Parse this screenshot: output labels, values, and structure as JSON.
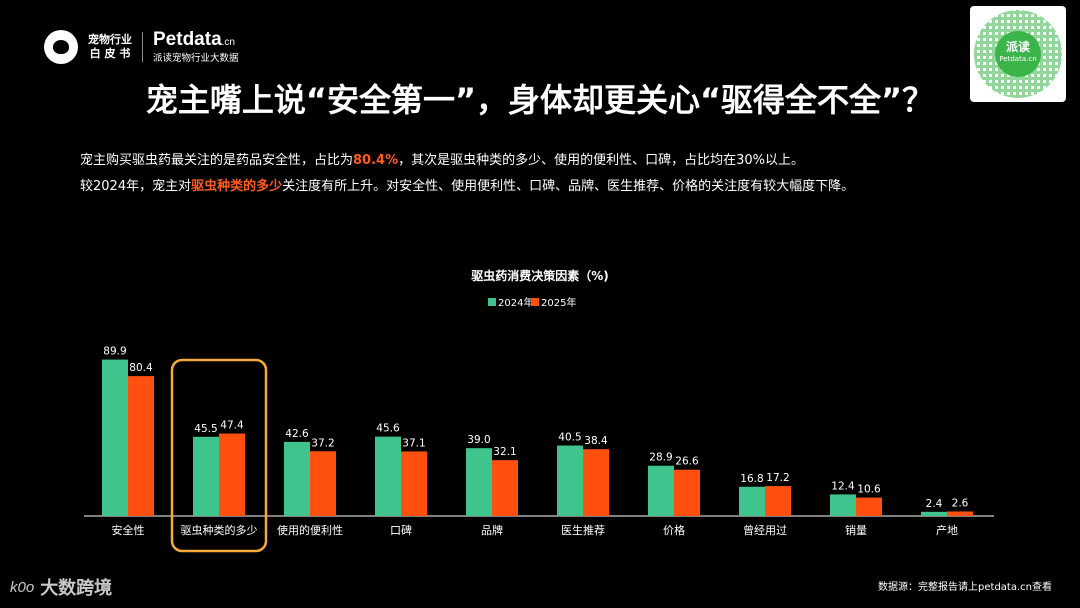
{
  "brand": {
    "line1": "宠物行业",
    "line2": "白 皮 书",
    "name": "Petdata",
    "domain": ".cn",
    "sub": "派读宠物行业大数据"
  },
  "qr": {
    "label": "派读",
    "sub": "Petdata.cn"
  },
  "title": "宠主嘴上说“安全第一”，身体却更关心“驱得全不全”？",
  "desc": {
    "l1a": "宠主购买驱虫药最关注的是药品安全性，占比为",
    "l1b": "80.4%",
    "l1c": "，其次是驱虫种类的多少、使用的便利性、口碑，占比均在30%以上。",
    "l2a": "较2024年，宠主对",
    "l2b": "驱虫种类的多少",
    "l2c": "关注度有所上升。对安全性、使用便利性、口碑、品牌、医生推荐、价格的关注度有较大幅度下降。"
  },
  "chart_data": {
    "type": "bar",
    "title": "驱虫药消费决策因素（%)",
    "categories": [
      "安全性",
      "驱虫种类的多少",
      "使用的便利性",
      "口碑",
      "品牌",
      "医生推荐",
      "价格",
      "曾经用过",
      "销量",
      "产地"
    ],
    "series": [
      {
        "name": "2024年",
        "color": "#3ec48c",
        "values": [
          89.9,
          45.5,
          42.6,
          45.6,
          39.0,
          40.5,
          28.9,
          16.8,
          12.4,
          2.4
        ]
      },
      {
        "name": "2025年",
        "color": "#ff5010",
        "values": [
          80.4,
          47.4,
          37.2,
          37.1,
          32.1,
          38.4,
          26.6,
          17.2,
          10.6,
          2.6
        ]
      }
    ],
    "ylim": [
      0,
      100
    ],
    "legend": "top-center",
    "grid": false,
    "highlight_category": "驱虫种类的多少",
    "highlight_color": "#f5a93a"
  },
  "source": "数据源：完整报告请上petdata.cn查看",
  "footer": {
    "mark": "k0o",
    "text": "大数跨境"
  }
}
